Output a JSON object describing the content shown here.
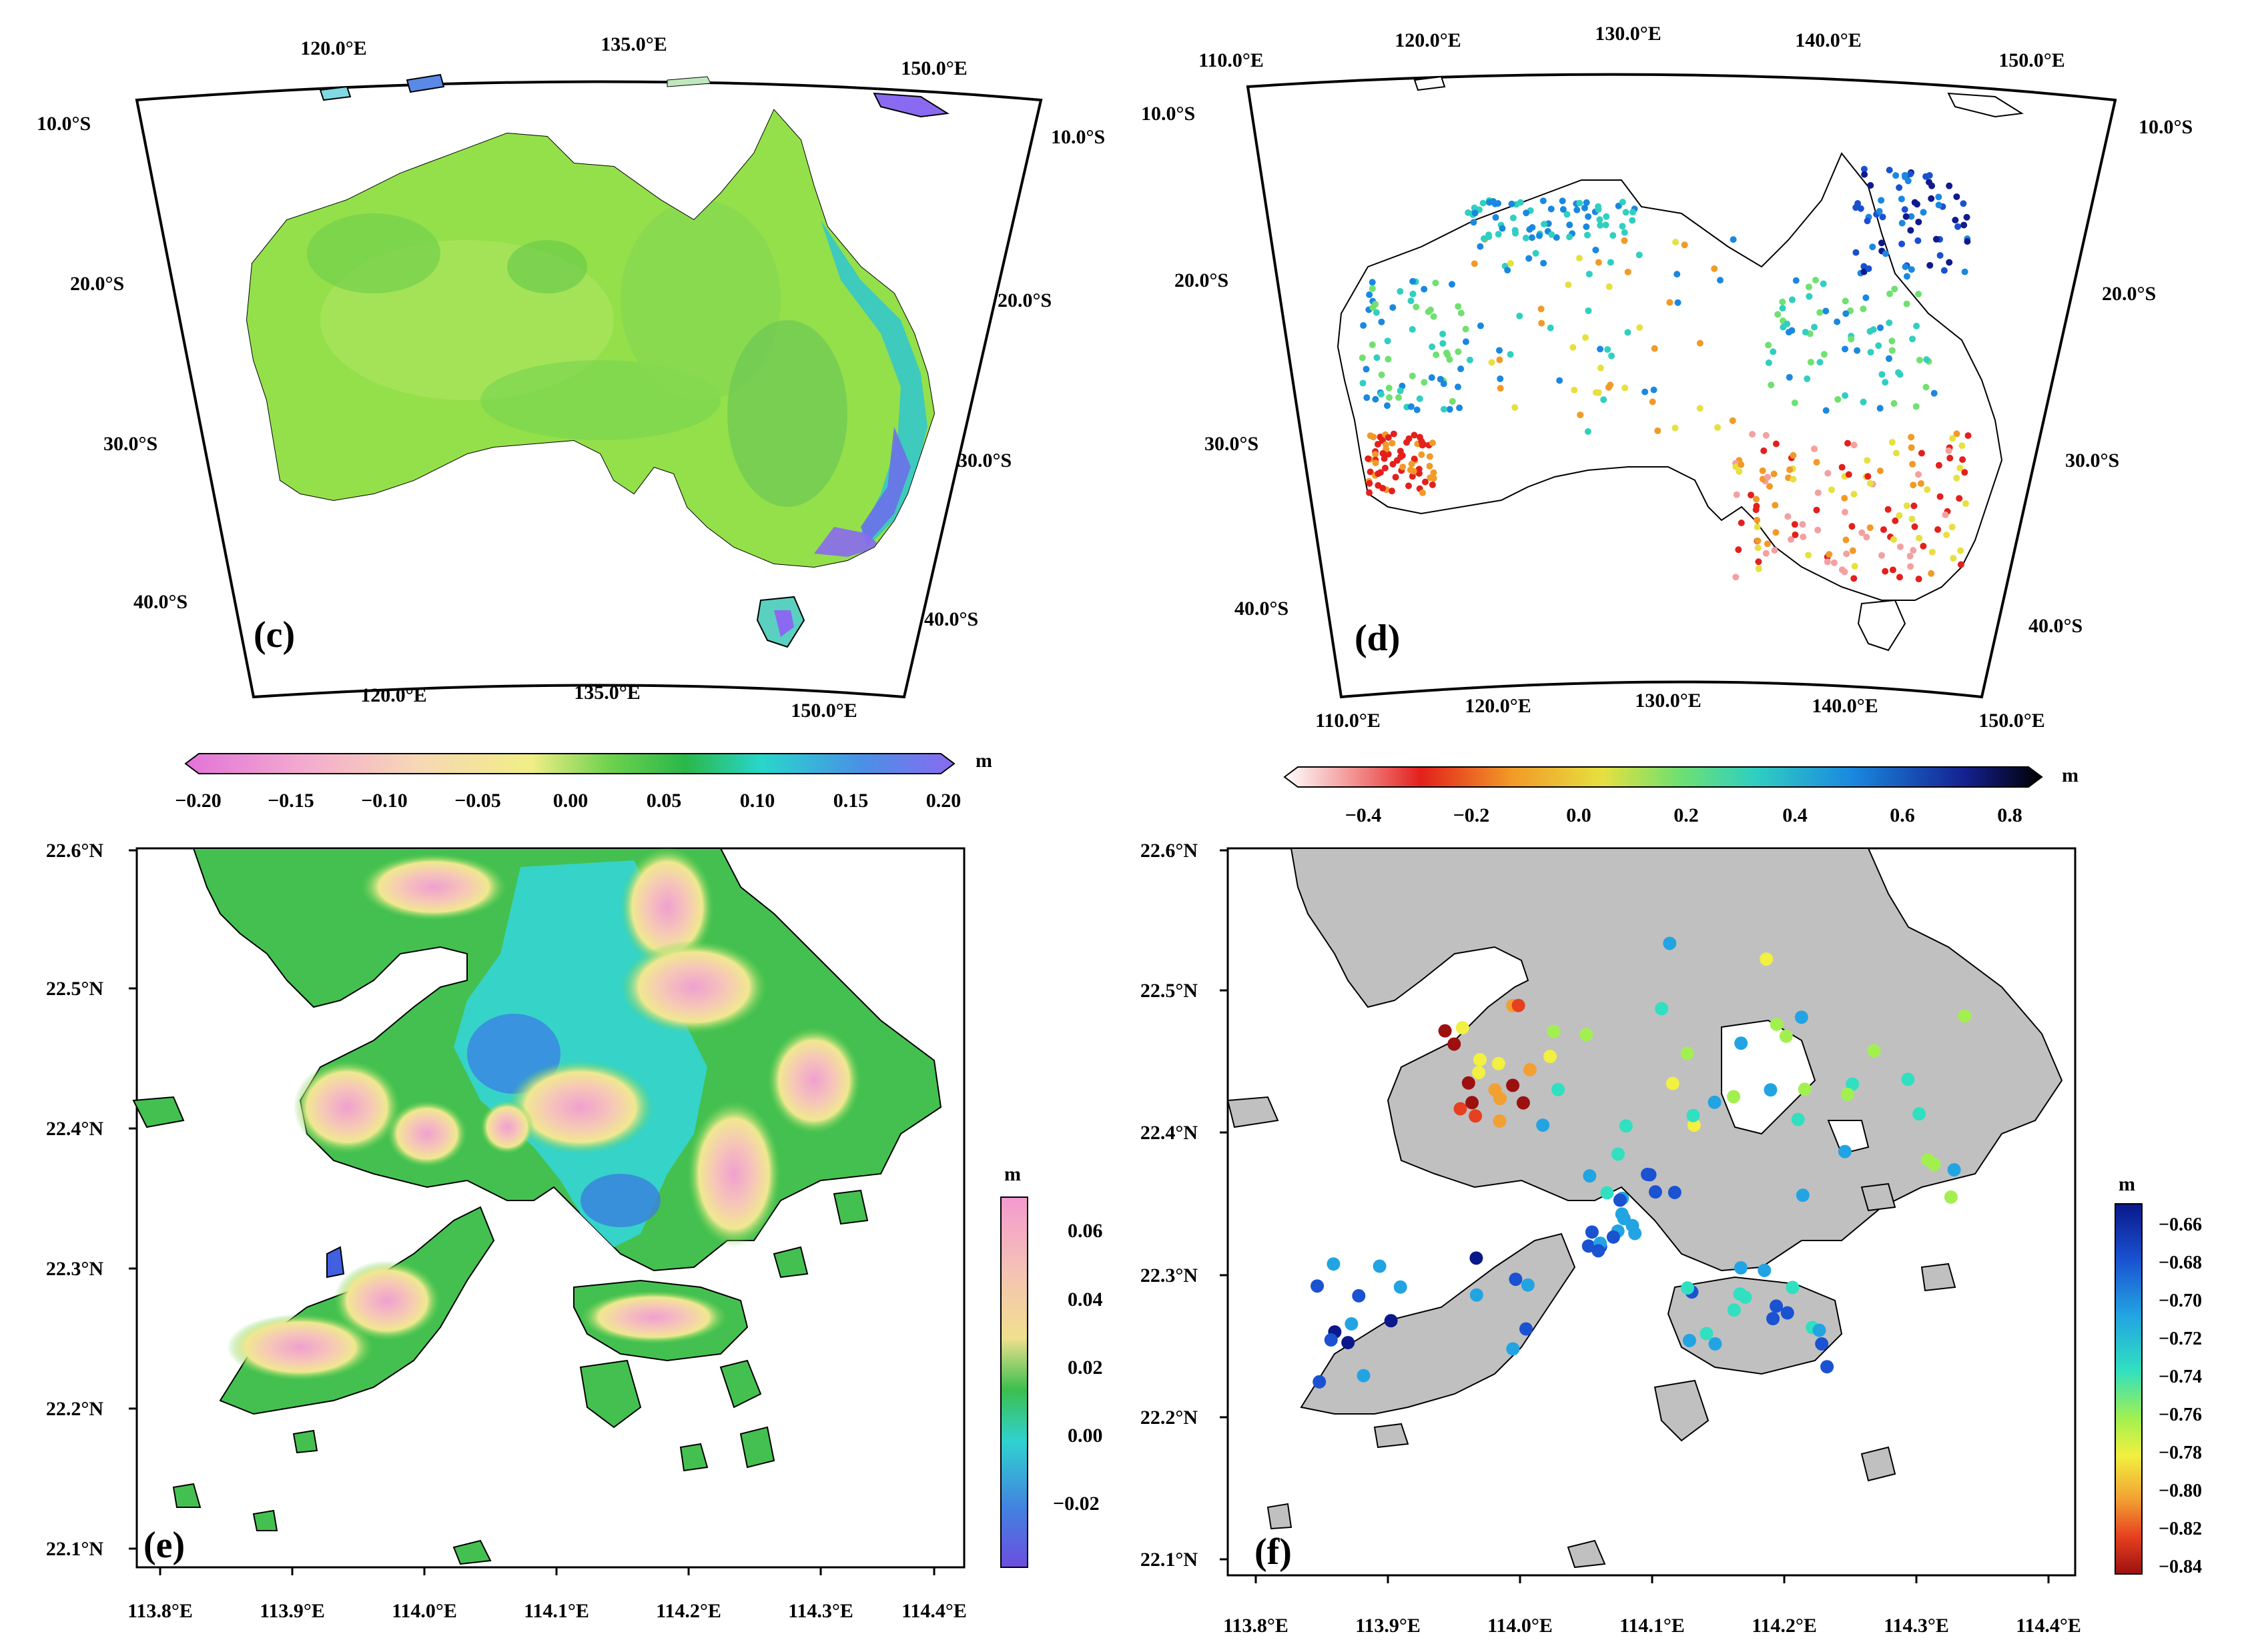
{
  "panels": {
    "c": {
      "letter": "(c)",
      "lon_top": [
        "120.0°E",
        "135.0°E",
        "150.0°E"
      ],
      "lon_bottom": [
        "120.0°E",
        "135.0°E",
        "150.0°E"
      ],
      "lat_left": [
        "10.0°S",
        "20.0°S",
        "30.0°S",
        "40.0°S"
      ],
      "lat_right": [
        "10.0°S",
        "20.0°S",
        "30.0°S",
        "40.0°S"
      ],
      "colorbar": {
        "unit": "m",
        "ticks": [
          "−0.20",
          "−0.15",
          "−0.10",
          "−0.05",
          "0.00",
          "0.05",
          "0.10",
          "0.15",
          "0.20"
        ],
        "colors": [
          "#e87ad9",
          "#f5b3cf",
          "#f6dcb4",
          "#f2ef8a",
          "#7fd957",
          "#2fbf48",
          "#27d9d0",
          "#4b96e8",
          "#8b6ef0"
        ]
      }
    },
    "d": {
      "letter": "(d)",
      "lon_top": [
        "110.0°E",
        "120.0°E",
        "130.0°E",
        "140.0°E",
        "150.0°E"
      ],
      "lon_bottom": [
        "110.0°E",
        "120.0°E",
        "130.0°E",
        "140.0°E",
        "150.0°E"
      ],
      "lat_left": [
        "10.0°S",
        "20.0°S",
        "30.0°S",
        "40.0°S"
      ],
      "lat_right": [
        "10.0°S",
        "20.0°S",
        "30.0°S",
        "40.0°S"
      ],
      "colorbar": {
        "unit": "m",
        "ticks": [
          "−0.4",
          "−0.2",
          "0.0",
          "0.2",
          "0.4",
          "0.6",
          "0.8"
        ],
        "colors": [
          "#ffffff",
          "#e8201c",
          "#f3a12a",
          "#c8e04a",
          "#38d2b0",
          "#1a8ee0",
          "#101a8c",
          "#000000"
        ]
      }
    },
    "e": {
      "letter": "(e)",
      "lon_bottom": [
        "113.8°E",
        "113.9°E",
        "114.0°E",
        "114.1°E",
        "114.2°E",
        "114.3°E",
        "114.4°E"
      ],
      "lat_left": [
        "22.6°N",
        "22.5°N",
        "22.4°N",
        "22.3°N",
        "22.2°N",
        "22.1°N"
      ],
      "colorbar": {
        "unit": "m",
        "ticks": [
          "0.06",
          "0.04",
          "0.02",
          "0.00",
          "−0.02"
        ],
        "colors": [
          "#f2a0d0",
          "#f5c0b0",
          "#f0e090",
          "#40c050",
          "#30d0d0",
          "#4080e0",
          "#7050e0"
        ]
      }
    },
    "f": {
      "letter": "(f)",
      "lon_bottom": [
        "113.8°E",
        "113.9°E",
        "114.0°E",
        "114.1°E",
        "114.2°E",
        "114.3°E",
        "114.4°E"
      ],
      "lat_left": [
        "22.6°N",
        "22.5°N",
        "22.4°N",
        "22.3°N",
        "22.2°N",
        "22.1°N"
      ],
      "colorbar": {
        "unit": "m",
        "ticks": [
          "−0.66",
          "−0.68",
          "−0.70",
          "−0.72",
          "−0.74",
          "−0.76",
          "−0.78",
          "−0.80",
          "−0.82",
          "−0.84"
        ],
        "colors": [
          "#0a1a8a",
          "#1a50d0",
          "#20a0e0",
          "#30e0c0",
          "#a0f050",
          "#f0f040",
          "#f0a030",
          "#e84020",
          "#a01010"
        ]
      }
    }
  }
}
